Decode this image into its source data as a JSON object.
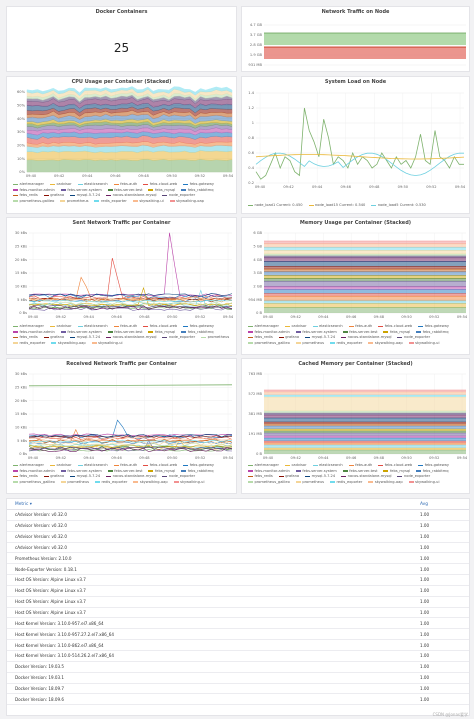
{
  "panels": {
    "docker_containers": {
      "title": "Docker Containers",
      "value": "25"
    },
    "network_traffic_node": {
      "title": "Network Traffic on Node",
      "ticks": [
        "4.7 GB",
        "3.7 GB",
        "2.8 GB",
        "1.9 GB",
        "931 MB"
      ]
    },
    "cpu_usage": {
      "title": "CPU Usage per Container (Stacked)",
      "ticks": [
        "60%",
        "50%",
        "40%",
        "30%",
        "20%",
        "10%",
        "0%"
      ]
    },
    "system_load": {
      "title": "System Load on Node",
      "ticks": [
        "1.4",
        "1.2",
        "1",
        "0.8",
        "0.6",
        "0.4",
        "0.2"
      ],
      "legend": [
        "node_load1  Current: 0.450",
        "node_load15  Current: 0.540",
        "node_load5  Current: 0.530"
      ]
    },
    "sent_traffic": {
      "title": "Sent Network Traffic per Container",
      "ticks": [
        "30 kBs",
        "25 kBs",
        "20 kBs",
        "15 kBs",
        "10 kBs",
        "5 kBs",
        "0 Bs"
      ]
    },
    "memory_usage": {
      "title": "Memory Usage per Container (Stacked)",
      "ticks": [
        "6 GB",
        "5 GB",
        "4 GB",
        "3 GB",
        "2 GB",
        "954 MB",
        "0 B"
      ]
    },
    "received_traffic": {
      "title": "Received Network Traffic per Container",
      "ticks": [
        "30 kBs",
        "25 kBs",
        "20 kBs",
        "15 kBs",
        "10 kBs",
        "5 kBs",
        "0 Bs"
      ]
    },
    "cached_memory": {
      "title": "Cached Memory per Container (Stacked)",
      "ticks": [
        "763 MB",
        "572 MB",
        "381 MB",
        "191 MB",
        "0 B"
      ]
    }
  },
  "time_ticks": [
    "09:40",
    "09:42",
    "09:44",
    "09:46",
    "09:48",
    "09:50",
    "09:52",
    "09:54"
  ],
  "legends": {
    "cpu": [
      "alertmanager",
      "cadvisor",
      "elasticsearch",
      "febs-auth",
      "febs-cloud-web",
      "febs-gateway",
      "febs-monitor-admin",
      "febs-server-system",
      "febs-server-test",
      "febs_mysql",
      "febs_rabbitmq",
      "febs_redis",
      "grafana",
      "mysql-5.7.24",
      "nacos-standalone-mysql",
      "node_exporter",
      "prometheus-galileo",
      "prometheus",
      "redis_exporter",
      "skywalking-ui",
      "skywalking-oap"
    ],
    "sent": [
      "alertmanager",
      "cadvisor",
      "elasticsearch",
      "febs-auth",
      "febs-cloud-web",
      "febs-gateway",
      "febs-monitor-admin",
      "febs-server-system",
      "febs-server-test",
      "febs_mysql",
      "febs_rabbitmq",
      "febs_redis",
      "grafana",
      "mysql-5.7.24",
      "nacos-standalone-mysql",
      "node_exporter",
      "prometheus",
      "redis_exporter",
      "skywalking-oap",
      "skywalking-ui"
    ],
    "memory": [
      "alertmanager",
      "cadvisor",
      "elasticsearch",
      "febs-auth",
      "febs-cloud-web",
      "febs-gateway",
      "febs-monitor-admin",
      "febs-server-system",
      "febs-server-test",
      "febs_mysql",
      "febs_rabbitmq",
      "febs_redis",
      "grafana",
      "mysql-5.7.24",
      "nacos-standalone-mysql",
      "node_exporter",
      "prometheus_galileo",
      "prometheus",
      "redis_exporter",
      "skywalking-oap",
      "skywalking-ui"
    ],
    "received": [
      "alertmanager",
      "cadvisor",
      "elasticsearch",
      "febs-auth",
      "febs-cloud-web",
      "febs-gateway",
      "febs-monitor-admin",
      "febs-server-system",
      "febs-server-test",
      "febs_mysql",
      "febs_rabbitmq",
      "febs_redis",
      "grafana",
      "mysql-5.7.24",
      "nacos-standalone-mysql",
      "node_exporter",
      "prometheus_galileo",
      "prometheus",
      "redis_exporter",
      "skywalking-oap",
      "skywalking-ui"
    ],
    "cached": [
      "alertmanager",
      "cadvisor",
      "elasticsearch",
      "febs-auth",
      "febs-cloud-web",
      "febs-gateway",
      "febs-monitor-admin",
      "febs-server-system",
      "febs-server-test",
      "febs_mysql",
      "febs_rabbitmq",
      "febs_redis",
      "grafana",
      "mysql-5.7.24",
      "nacos-standalone-mysql",
      "node_exporter",
      "prometheus_galileo",
      "prometheus",
      "redis_exporter",
      "skywalking-oap",
      "skywalking-ui"
    ]
  },
  "colors": [
    "#7eb26d",
    "#eab839",
    "#6ed0e0",
    "#ef843c",
    "#e24d42",
    "#1f78c1",
    "#ba43a9",
    "#705da0",
    "#508642",
    "#cca300",
    "#447ebc",
    "#c15c17",
    "#890f02",
    "#0a437c",
    "#6d1f62",
    "#584477",
    "#b7dbab",
    "#f4d598",
    "#70dbed",
    "#f9ba8f",
    "#f29191"
  ],
  "table": {
    "headers": {
      "metric": "Metric ▾",
      "avg": "Avg"
    },
    "rows": [
      {
        "metric": "cAdvisor Version: v0.32.0",
        "avg": "1.00"
      },
      {
        "metric": "cAdvisor Version: v0.32.0",
        "avg": "1.00"
      },
      {
        "metric": "cAdvisor Version: v0.32.0",
        "avg": "1.00"
      },
      {
        "metric": "cAdvisor Version: v0.32.0",
        "avg": "1.00"
      },
      {
        "metric": "Prometheus Version: 2.10.0",
        "avg": "1.00"
      },
      {
        "metric": "Node-Exporter Version: 0.18.1",
        "avg": "1.00"
      },
      {
        "metric": "Host OS Version: Alpine Linux v3.7",
        "avg": "1.00"
      },
      {
        "metric": "Host OS Version: Alpine Linux v3.7",
        "avg": "1.00"
      },
      {
        "metric": "Host OS Version: Alpine Linux v3.7",
        "avg": "1.00"
      },
      {
        "metric": "Host OS Version: Alpine Linux v3.7",
        "avg": "1.00"
      },
      {
        "metric": "Host Kernel Version: 3.10.0-957.el7.x86_64",
        "avg": "1.00"
      },
      {
        "metric": "Host Kernel Version: 3.10.0-957.27.2.el7.x86_64",
        "avg": "1.00"
      },
      {
        "metric": "Host Kernel Version: 3.10.0-862.el7.x86_64",
        "avg": "1.00"
      },
      {
        "metric": "Host Kernel Version: 3.10.0-514.26.2.el7.x86_64",
        "avg": "1.00"
      },
      {
        "metric": "Docker Version: 19.03.5",
        "avg": "1.00"
      },
      {
        "metric": "Docker Version: 19.03.1",
        "avg": "1.00"
      },
      {
        "metric": "Docker Version: 18.09.7",
        "avg": "1.00"
      },
      {
        "metric": "Docker Version: 18.09.6",
        "avg": "1.00"
      }
    ]
  },
  "credit": "CSDN @Jonas爱学"
}
